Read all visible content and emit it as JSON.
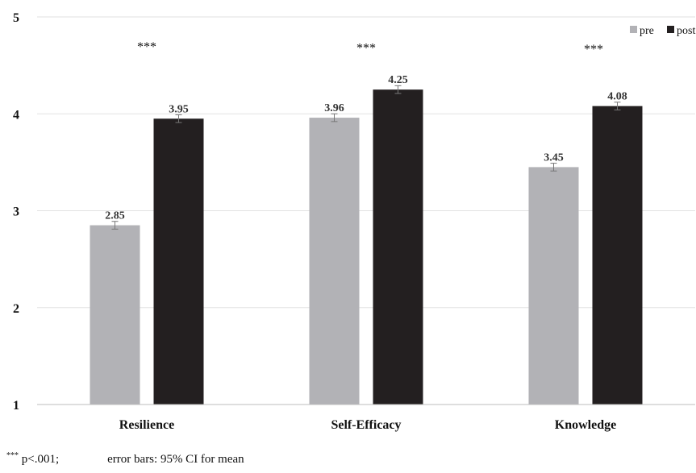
{
  "chart_data": {
    "type": "bar",
    "categories": [
      "Resilience",
      "Self-Efficacy",
      "Knowledge"
    ],
    "series": [
      {
        "name": "pre",
        "color": "#b2b2b6",
        "values": [
          2.85,
          3.96,
          3.45
        ],
        "labels": [
          "2.85",
          "3.96",
          "3.45"
        ],
        "error": [
          0.04,
          0.04,
          0.04
        ]
      },
      {
        "name": "post",
        "color": "#231f20",
        "values": [
          3.95,
          4.25,
          4.08
        ],
        "labels": [
          "3.95",
          "4.25",
          "4.08"
        ],
        "error": [
          0.04,
          0.04,
          0.04
        ]
      }
    ],
    "significance": [
      "***",
      "***",
      "***"
    ],
    "ylim": [
      1,
      5
    ],
    "yticks": [
      "1",
      "2",
      "3",
      "4",
      "5"
    ],
    "grid": true,
    "legend": "top-right"
  },
  "footnote": {
    "marker": "***",
    "significance_text": "p<.001;",
    "errorbar_text": "error bars: 95% CI for mean"
  }
}
